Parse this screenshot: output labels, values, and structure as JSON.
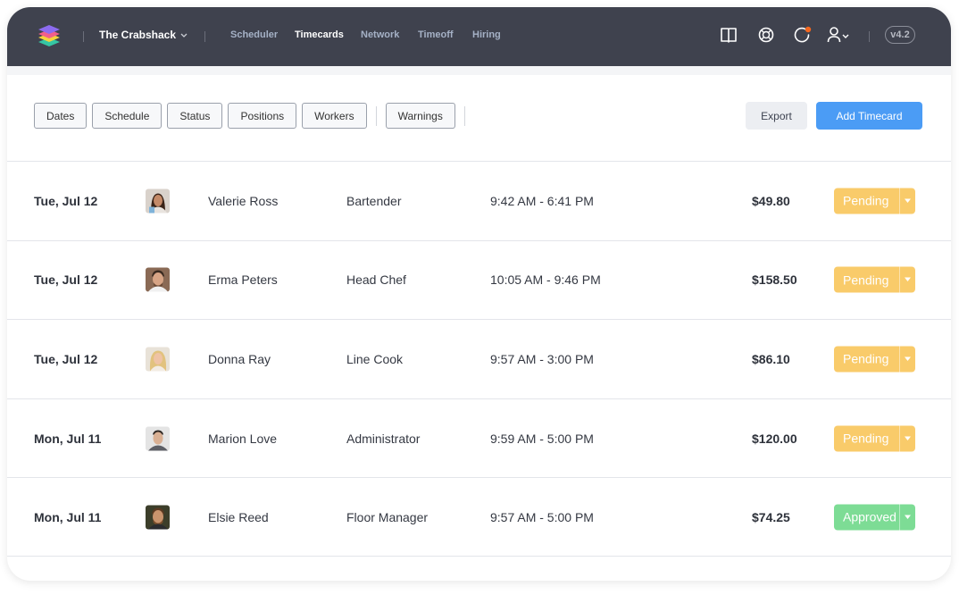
{
  "app": {
    "org_name": "The Crabshack",
    "version": "v4.2"
  },
  "nav": [
    {
      "label": "Scheduler",
      "active": false
    },
    {
      "label": "Timecards",
      "active": true
    },
    {
      "label": "Network",
      "active": false
    },
    {
      "label": "Timeoff",
      "active": false
    },
    {
      "label": "Hiring",
      "active": false
    }
  ],
  "header_icons": [
    "book-icon",
    "support-icon",
    "notifications-icon",
    "user-menu-icon"
  ],
  "toolbar": {
    "filters": [
      "Dates",
      "Schedule",
      "Status",
      "Positions",
      "Workers"
    ],
    "warnings_label": "Warnings",
    "export_label": "Export",
    "add_label": "Add Timecard"
  },
  "colors": {
    "topbar": "#3f424e",
    "accent": "#4b9cf5",
    "pending": "#f9cb6a",
    "approved": "#7ddc95"
  },
  "timecards": [
    {
      "date": "Tue, Jul 12",
      "name": "Valerie Ross",
      "position": "Bartender",
      "time": "9:42 AM - 6:41 PM",
      "amount": "$49.80",
      "status": "Pending"
    },
    {
      "date": "Tue, Jul 12",
      "name": "Erma Peters",
      "position": "Head Chef",
      "time": "10:05 AM - 9:46 PM",
      "amount": "$158.50",
      "status": "Pending"
    },
    {
      "date": "Tue, Jul 12",
      "name": "Donna Ray",
      "position": "Line Cook",
      "time": "9:57 AM - 3:00 PM",
      "amount": "$86.10",
      "status": "Pending"
    },
    {
      "date": "Mon, Jul 11",
      "name": "Marion Love",
      "position": "Administrator",
      "time": "9:59 AM - 5:00 PM",
      "amount": "$120.00",
      "status": "Pending"
    },
    {
      "date": "Mon, Jul 11",
      "name": "Elsie Reed",
      "position": "Floor Manager",
      "time": "9:57 AM - 5:00 PM",
      "amount": "$74.25",
      "status": "Approved"
    }
  ]
}
